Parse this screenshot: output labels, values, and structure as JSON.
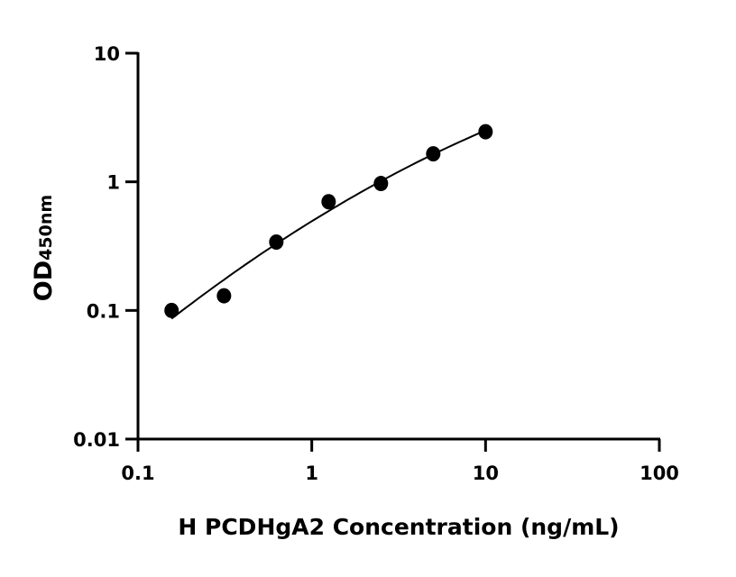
{
  "chart_data": {
    "type": "scatter",
    "title": "",
    "xlabel": "H PCDHgA2 Concentration (ng/mL)",
    "ylabel_main": "OD",
    "ylabel_sub": "450nm",
    "x_scale": "log",
    "y_scale": "log",
    "xlim": [
      0.1,
      100
    ],
    "ylim": [
      0.01,
      10
    ],
    "x_ticks": [
      "0.1",
      "1",
      "10",
      "100"
    ],
    "y_ticks": [
      "0.01",
      "0.1",
      "1",
      "10"
    ],
    "grid": false,
    "legend": "none",
    "fit_curve": true,
    "marker_color": "#000000",
    "line_color": "#000000",
    "series": [
      {
        "x": [
          0.156,
          0.3125,
          0.625,
          1.25,
          2.5,
          5,
          10
        ],
        "y": [
          0.1,
          0.13,
          0.34,
          0.7,
          0.97,
          1.65,
          2.45
        ]
      }
    ]
  }
}
